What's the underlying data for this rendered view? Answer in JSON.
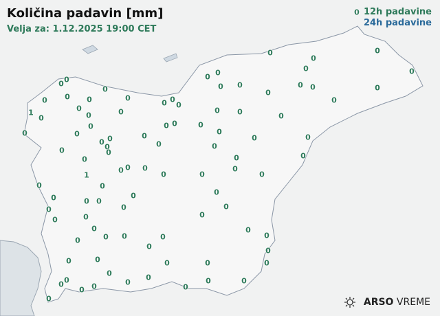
{
  "header": {
    "title": "Količina padavin [mm]",
    "valid": "Velja za: 1.12.2025 19:00 CET"
  },
  "legend": {
    "item_12h": "12h padavine",
    "item_24h": "24h padavine",
    "color_12h": "#2e7a5a",
    "color_24h": "#2a6a9a"
  },
  "stations": {
    "values": [
      "0",
      "0",
      "0",
      "0",
      "0",
      "0",
      "0",
      "0",
      "0",
      "0",
      "0",
      "0",
      "0",
      "0",
      "0",
      "0",
      "0",
      "0",
      "0",
      "0",
      "0",
      "0",
      "0",
      "0",
      "0",
      "1",
      "0",
      "0",
      "0",
      "0",
      "0",
      "0",
      "0",
      "0",
      "0",
      "0",
      "0",
      "0",
      "0",
      "0",
      "0",
      "0",
      "0",
      "0",
      "0",
      "0",
      "0",
      "0",
      "0",
      "0",
      "0",
      "0",
      "0",
      "0",
      "0",
      "0",
      "0",
      "0",
      "0",
      "0",
      "1",
      "0",
      "0",
      "0",
      "0",
      "0",
      "0",
      "0",
      "0",
      "0",
      "0",
      "0",
      "0",
      "0",
      "0",
      "0",
      "0",
      "0",
      "0",
      "0",
      "0",
      "0",
      "0",
      "0",
      "0",
      "0",
      "0",
      "0",
      "0",
      "0",
      "0",
      "0",
      "0",
      "0",
      "0",
      "0",
      "0",
      "0",
      "0"
    ]
  },
  "logo": {
    "brand": "ARSO",
    "product": "VREME",
    "icon": "sun-cloud-icon"
  }
}
